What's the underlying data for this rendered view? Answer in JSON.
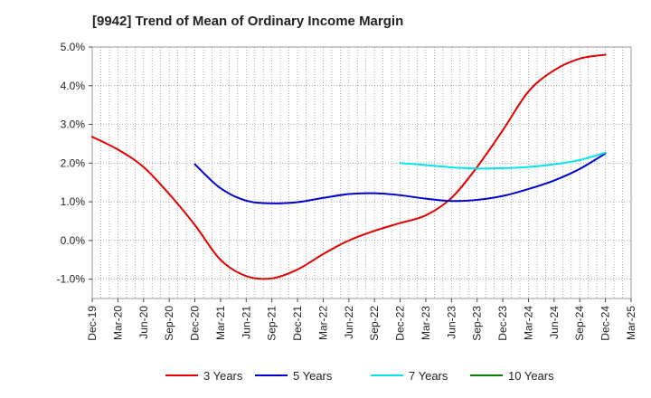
{
  "chart_data": {
    "type": "line",
    "title": "[9942]  Trend of Mean of Ordinary Income Margin",
    "xlabel": "",
    "ylabel": "",
    "ylim": [
      -1.5,
      5.0
    ],
    "y_ticks": [
      5.0,
      4.0,
      3.0,
      2.0,
      1.0,
      0.0,
      -1.0
    ],
    "y_tick_labels": [
      "5.0%",
      "4.0%",
      "3.0%",
      "2.0%",
      "1.0%",
      "0.0%",
      "-1.0%"
    ],
    "x_tick_labels": [
      "Dec-19",
      "Mar-20",
      "Jun-20",
      "Sep-20",
      "Dec-20",
      "Mar-21",
      "Jun-21",
      "Sep-21",
      "Dec-21",
      "Mar-22",
      "Jun-22",
      "Sep-22",
      "Dec-22",
      "Mar-23",
      "Jun-23",
      "Sep-23",
      "Dec-23",
      "Mar-24",
      "Jun-24",
      "Sep-24",
      "Dec-24",
      "Mar-25"
    ],
    "grid": true,
    "legend_position": "bottom",
    "series": [
      {
        "name": "3 Years",
        "color": "#e00000",
        "values": [
          2.68,
          2.35,
          1.9,
          1.2,
          0.4,
          -0.5,
          -0.92,
          -0.98,
          -0.75,
          -0.35,
          0.0,
          0.25,
          0.45,
          0.65,
          1.1,
          1.9,
          2.85,
          3.85,
          4.4,
          4.7,
          4.8,
          null
        ]
      },
      {
        "name": "5 Years",
        "color": "#0000cc",
        "values": [
          null,
          null,
          null,
          null,
          1.97,
          1.35,
          1.03,
          0.96,
          0.99,
          1.1,
          1.2,
          1.22,
          1.17,
          1.08,
          1.02,
          1.05,
          1.15,
          1.33,
          1.55,
          1.85,
          2.25,
          null
        ]
      },
      {
        "name": "7 Years",
        "color": "#00e5ee",
        "values": [
          null,
          null,
          null,
          null,
          null,
          null,
          null,
          null,
          null,
          null,
          null,
          null,
          2.0,
          1.95,
          1.89,
          1.86,
          1.87,
          1.9,
          1.97,
          2.08,
          2.27,
          null
        ]
      },
      {
        "name": "10 Years",
        "color": "#008000",
        "values": [
          null,
          null,
          null,
          null,
          null,
          null,
          null,
          null,
          null,
          null,
          null,
          null,
          null,
          null,
          null,
          null,
          null,
          null,
          null,
          null,
          null,
          null
        ]
      }
    ]
  }
}
